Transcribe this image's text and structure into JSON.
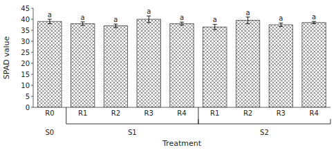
{
  "chart_data": {
    "type": "bar",
    "xlabel": "Treatment",
    "ylabel": "SPAD value",
    "categories": [
      "R0",
      "R1",
      "R2",
      "R3",
      "R4",
      "R1",
      "R2",
      "R3",
      "R4"
    ],
    "values": [
      39.0,
      38.0,
      37.0,
      40.0,
      38.0,
      36.5,
      39.5,
      37.5,
      38.5
    ],
    "errors": [
      1.0,
      0.8,
      0.8,
      1.5,
      0.7,
      1.2,
      1.5,
      0.8,
      0.5
    ],
    "annotations": [
      "a",
      "a",
      "a",
      "a",
      "a",
      "a",
      "a",
      "a",
      "a"
    ],
    "groups": [
      {
        "label": "S0",
        "size": 1
      },
      {
        "label": "S1",
        "size": 4
      },
      {
        "label": "S2",
        "size": 4
      }
    ],
    "color": "#444444",
    "ylim": [
      0,
      45
    ],
    "yticks": [
      0,
      5,
      10,
      15,
      20,
      25,
      30,
      35,
      40,
      45
    ],
    "grid": false
  }
}
